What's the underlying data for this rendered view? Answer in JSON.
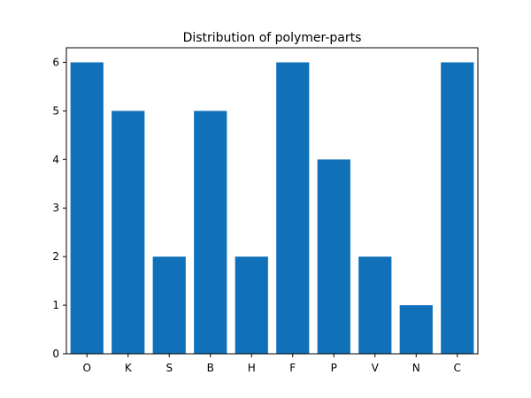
{
  "chart_data": {
    "type": "bar",
    "title": "Distribution of polymer-parts",
    "xlabel": "",
    "ylabel": "",
    "categories": [
      "O",
      "K",
      "S",
      "B",
      "H",
      "F",
      "P",
      "V",
      "N",
      "C"
    ],
    "values": [
      6,
      5,
      2,
      5,
      2,
      6,
      4,
      2,
      1,
      6
    ],
    "ylim": [
      0,
      6.3
    ],
    "yticks": [
      "0",
      "1",
      "2",
      "3",
      "4",
      "5",
      "6"
    ],
    "grid": false,
    "legend": "none",
    "bar_color": "#1070b8"
  }
}
